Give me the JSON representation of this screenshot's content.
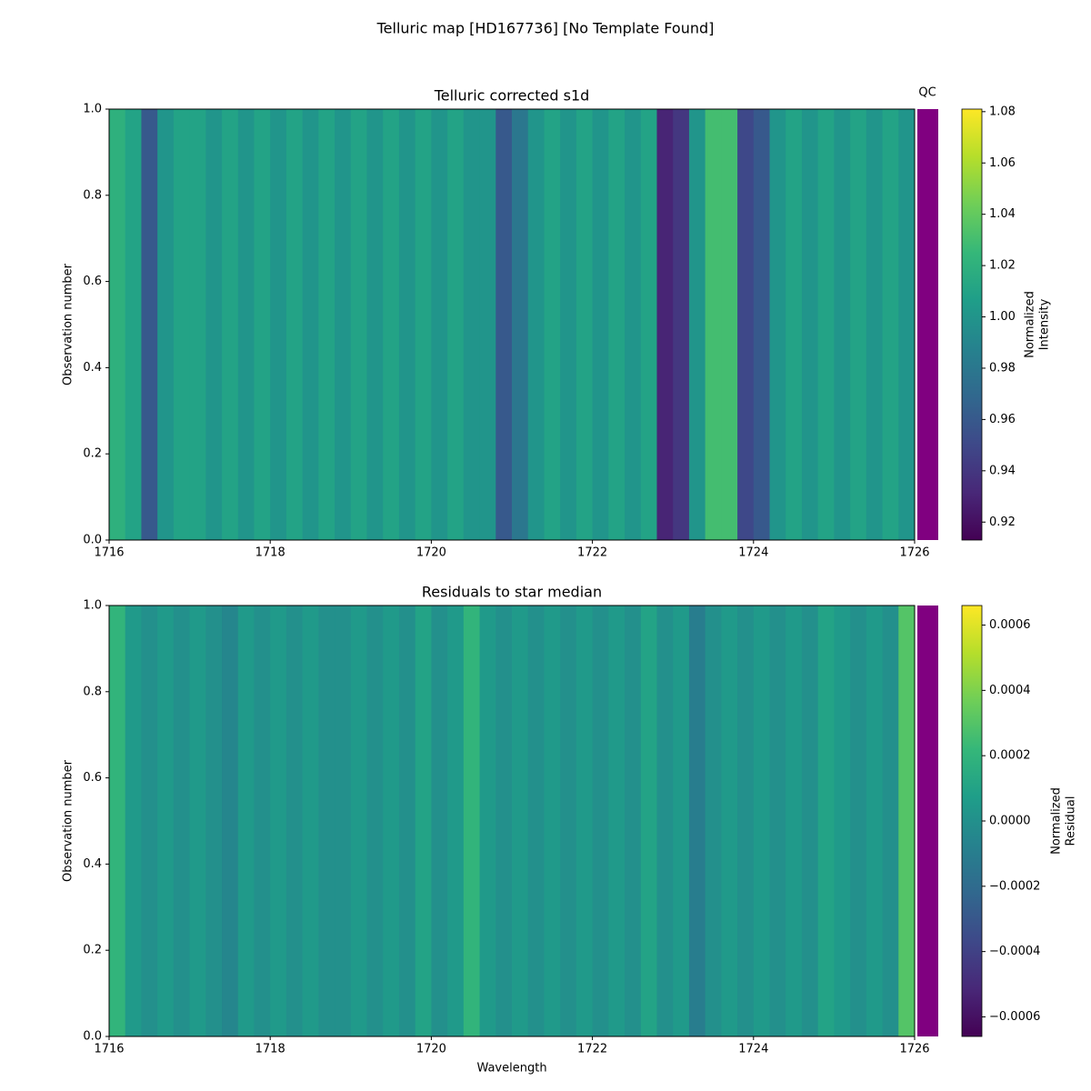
{
  "figure_title": "Telluric map [HD167736] [No Template Found]",
  "chart_data": [
    {
      "type": "heatmap",
      "title": "Telluric corrected s1d",
      "ylabel": "Observation number",
      "qc_label": "QC",
      "qc_color": "#800080",
      "colormap": "viridis",
      "colorbar_label": [
        "Normalized",
        "Intensity"
      ],
      "xlim": [
        1716,
        1726
      ],
      "xticks": [
        1716,
        1718,
        1720,
        1722,
        1724,
        1726
      ],
      "ylim": [
        0,
        1
      ],
      "yticks": [
        {
          "value": 0,
          "label": "0.0"
        },
        0.2,
        0.4,
        0.6,
        0.8,
        {
          "value": 1,
          "label": "1.0"
        }
      ],
      "clim": [
        0.913,
        1.081
      ],
      "cticks": [
        0.92,
        0.94,
        0.96,
        0.98,
        {
          "value": 1,
          "label": "1.00"
        },
        1.02,
        1.04,
        1.06,
        1.08
      ],
      "x": [
        1716.1,
        1716.3,
        1716.5,
        1716.7,
        1716.9,
        1717.1,
        1717.3,
        1717.5,
        1717.7,
        1717.9,
        1718.1,
        1718.3,
        1718.5,
        1718.7,
        1718.9,
        1719.1,
        1719.3,
        1719.5,
        1719.7,
        1719.9,
        1720.1,
        1720.3,
        1720.5,
        1720.7,
        1720.9,
        1721.1,
        1721.3,
        1721.5,
        1721.7,
        1721.9,
        1722.1,
        1722.3,
        1722.5,
        1722.7,
        1722.9,
        1723.1,
        1723.3,
        1723.5,
        1723.7,
        1723.9,
        1724.1,
        1724.3,
        1724.5,
        1724.7,
        1724.9,
        1725.1,
        1725.3,
        1725.5,
        1725.7,
        1725.9
      ],
      "values": [
        1.02,
        1.01,
        0.96,
        1.0,
        1.01,
        1.01,
        1.0,
        1.01,
        1.0,
        1.01,
        1.0,
        1.01,
        1.0,
        1.01,
        1.0,
        1.01,
        1.0,
        1.01,
        1.0,
        1.01,
        1.0,
        1.01,
        1.0,
        1.0,
        0.96,
        0.98,
        1.0,
        1.01,
        1.0,
        1.01,
        1.0,
        1.01,
        1.0,
        1.01,
        0.93,
        0.94,
        1.0,
        1.03,
        1.03,
        0.95,
        0.96,
        1.0,
        1.01,
        1.0,
        1.01,
        1.0,
        1.01,
        1.0,
        1.01,
        1.0
      ]
    },
    {
      "type": "heatmap",
      "title": "Residuals to star median",
      "xlabel": "Wavelength",
      "ylabel": "Observation number",
      "qc_color": "#800080",
      "colormap": "viridis",
      "colorbar_label": [
        "Normalized",
        "Residual"
      ],
      "xlim": [
        1716,
        1726
      ],
      "xticks": [
        1716,
        1718,
        1720,
        1722,
        1724,
        1726
      ],
      "ylim": [
        0,
        1
      ],
      "yticks": [
        {
          "value": 0,
          "label": "0.0"
        },
        0.2,
        0.4,
        0.6,
        0.8,
        {
          "value": 1,
          "label": "1.0"
        }
      ],
      "clim": [
        -0.00066,
        0.00066
      ],
      "cticks": [
        {
          "value": -0.0006,
          "label": "−0.0006"
        },
        {
          "value": -0.0004,
          "label": "−0.0004"
        },
        {
          "value": -0.0002,
          "label": "−0.0002"
        },
        {
          "value": 0,
          "label": "0.0000"
        },
        0.0002,
        0.0004,
        0.0006
      ],
      "x": [
        1716.1,
        1716.3,
        1716.5,
        1716.7,
        1716.9,
        1717.1,
        1717.3,
        1717.5,
        1717.7,
        1717.9,
        1718.1,
        1718.3,
        1718.5,
        1718.7,
        1718.9,
        1719.1,
        1719.3,
        1719.5,
        1719.7,
        1719.9,
        1720.1,
        1720.3,
        1720.5,
        1720.7,
        1720.9,
        1721.1,
        1721.3,
        1721.5,
        1721.7,
        1721.9,
        1722.1,
        1722.3,
        1722.5,
        1722.7,
        1722.9,
        1723.1,
        1723.3,
        1723.5,
        1723.7,
        1723.9,
        1724.1,
        1724.3,
        1724.5,
        1724.7,
        1724.9,
        1725.1,
        1725.3,
        1725.5,
        1725.7,
        1725.9
      ],
      "values": [
        0.0002,
        5e-05,
        0.0,
        5e-05,
        0.0,
        5e-05,
        0.0,
        -5e-05,
        5e-05,
        0.0,
        5e-05,
        0.0,
        5e-05,
        0.0,
        0.0,
        5e-05,
        0.0,
        5e-05,
        0.0,
        0.0001,
        0.0,
        5e-05,
        0.0002,
        5e-05,
        0.0,
        5e-05,
        0.0,
        5e-05,
        0.0,
        5e-05,
        0.0,
        5e-05,
        0.0,
        0.0001,
        0.0,
        5e-05,
        -0.0001,
        0.0,
        5e-05,
        0.0,
        5e-05,
        0.0,
        5e-05,
        0.0,
        0.0001,
        5e-05,
        0.0,
        5e-05,
        0.0,
        0.0003
      ]
    }
  ]
}
